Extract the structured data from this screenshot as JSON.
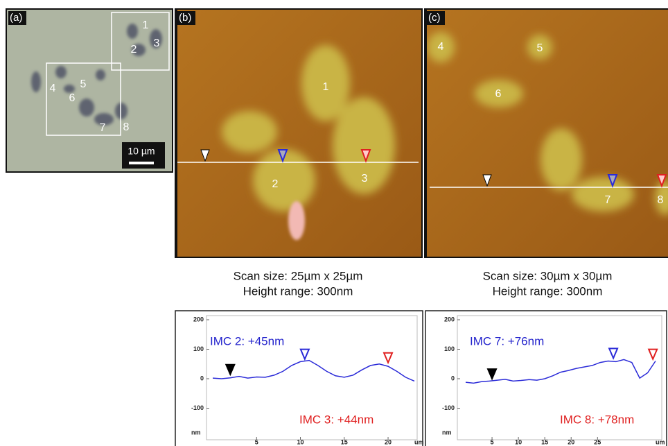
{
  "image_a": {
    "label": "(a)",
    "numbers": [
      "1",
      "2",
      "3",
      "4",
      "5",
      "6",
      "7",
      "8"
    ],
    "scale_bar": "10 µm"
  },
  "image_b": {
    "label": "(b)",
    "numbers": [
      "1",
      "2",
      "3"
    ],
    "scan_size": "Scan size: 25µm x 25µm",
    "height_range": "Height range: 300nm"
  },
  "image_c": {
    "label": "(c)",
    "numbers": [
      "4",
      "5",
      "6",
      "7",
      "8"
    ],
    "scan_size": "Scan size: 30µm x 30µm",
    "height_range": "Height range: 300nm"
  },
  "chart_data": [
    {
      "type": "line",
      "x": [
        0,
        1,
        2,
        3,
        4,
        5,
        6,
        7,
        8,
        9,
        10,
        11,
        12,
        13,
        14,
        15,
        16,
        17,
        18,
        19,
        20,
        21,
        22,
        23
      ],
      "values": [
        2,
        0,
        3,
        8,
        2,
        6,
        5,
        12,
        25,
        45,
        58,
        62,
        45,
        25,
        10,
        5,
        12,
        30,
        45,
        50,
        42,
        25,
        5,
        -8
      ],
      "color": "#2a2ad8",
      "xlim": [
        0,
        23
      ],
      "ylim": [
        -200,
        200
      ],
      "xticks": [
        5,
        10,
        15,
        20
      ],
      "yticks": [
        -100,
        0,
        100,
        200
      ],
      "x_unit": "um",
      "y_unit": "nm",
      "markers": [
        {
          "x": 2,
          "y": 10,
          "color": "#000000"
        },
        {
          "x": 10.5,
          "y": 62,
          "color": "#2a2ad8"
        },
        {
          "x": 20,
          "y": 50,
          "color": "#e02020"
        }
      ],
      "annotations": [
        {
          "text": "IMC 2: +45nm",
          "color": "#2222cc"
        },
        {
          "text": "IMC 3: +44nm",
          "color": "#e02020"
        }
      ]
    },
    {
      "type": "line",
      "x": [
        0,
        1.5,
        3,
        4.5,
        6,
        7.5,
        9,
        10.5,
        12,
        13.5,
        15,
        16.5,
        18,
        19.5,
        21,
        22.5,
        24,
        25.5,
        27,
        28.5,
        30,
        31.5,
        33,
        34.5,
        36
      ],
      "values": [
        -12,
        -15,
        -10,
        -8,
        -5,
        -2,
        -8,
        -6,
        -3,
        -5,
        0,
        10,
        22,
        28,
        35,
        40,
        45,
        55,
        60,
        58,
        65,
        55,
        2,
        20,
        60
      ],
      "color": "#2a2ad8",
      "xlim": [
        0,
        36
      ],
      "ylim": [
        -200,
        200
      ],
      "xticks": [
        5,
        10,
        15,
        20,
        25
      ],
      "yticks": [
        -100,
        0,
        100,
        200
      ],
      "x_unit": "um",
      "y_unit": "nm",
      "markers": [
        {
          "x": 5,
          "y": -5,
          "color": "#000000"
        },
        {
          "x": 28,
          "y": 65,
          "color": "#2a2ad8"
        },
        {
          "x": 35.5,
          "y": 62,
          "color": "#e02020"
        }
      ],
      "annotations": [
        {
          "text": "IMC 7: +76nm",
          "color": "#2222cc"
        },
        {
          "text": "IMC 8: +78nm",
          "color": "#e02020"
        }
      ]
    }
  ]
}
